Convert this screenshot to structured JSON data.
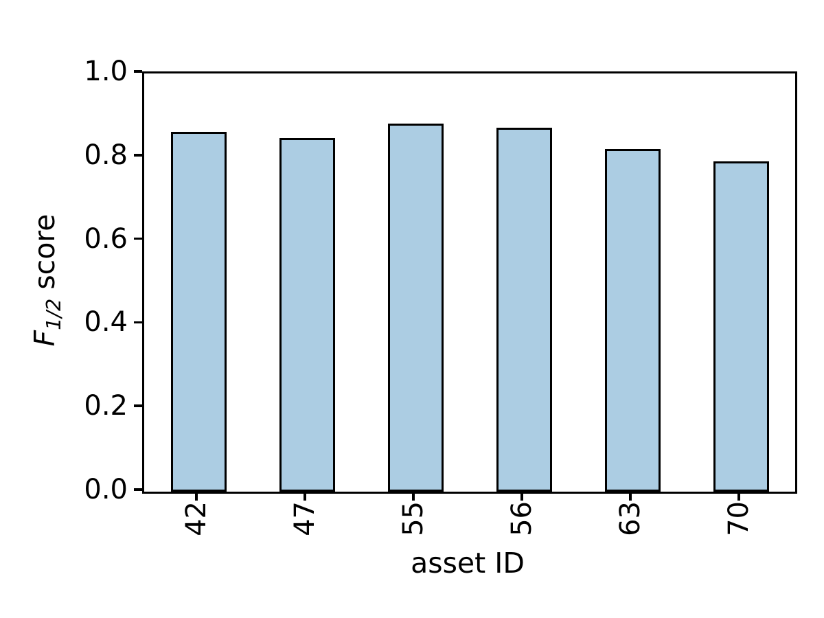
{
  "chart_data": {
    "type": "bar",
    "title": "",
    "xlabel": "asset ID",
    "ylabel": "F_{1/2} score",
    "ylabel_parts": {
      "variable": "F",
      "subscript": "1/2",
      "text": " score"
    },
    "categories": [
      "42",
      "47",
      "55",
      "56",
      "63",
      "70"
    ],
    "values": [
      0.86,
      0.845,
      0.88,
      0.87,
      0.82,
      0.79
    ],
    "ylim": [
      0.0,
      1.0
    ],
    "ytick_labels": [
      "0.0",
      "0.2",
      "0.4",
      "0.6",
      "0.8",
      "1.0"
    ],
    "x_tick_rotation_deg": 90,
    "grid": false,
    "legend_visible": false,
    "bar_width_fraction": 0.5,
    "colors": {
      "bar_fill": "#accde3",
      "bar_edge": "#000000",
      "axis": "#000000",
      "background": "#ffffff",
      "text": "#000000"
    }
  }
}
